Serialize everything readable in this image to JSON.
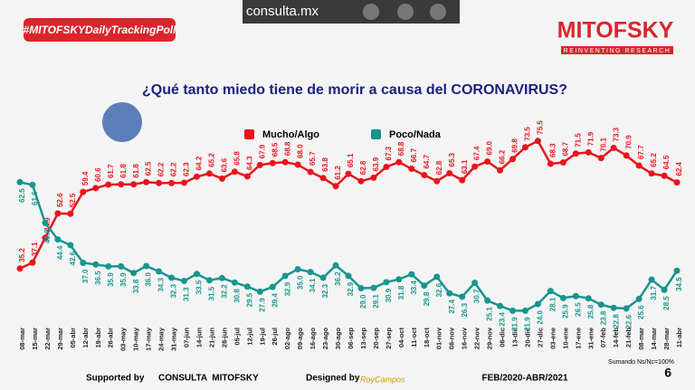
{
  "header": {
    "site": "consulta.mx",
    "hashtag": "#MITOFSKYDailyTrackingPoll",
    "brand": "MITOFSKY",
    "tagline": "REINVENTING RESEARCH"
  },
  "chart_data": {
    "type": "line",
    "title": "¿Qué tanto miedo tiene de morir a causa del CORONAVIRUS?",
    "categories": [
      "08-mar",
      "15-mar",
      "22-mar",
      "29-mar",
      "05-abr",
      "12-abr",
      "19-abr",
      "26-abr",
      "03-may",
      "10-may",
      "17-may",
      "24-may",
      "31-may",
      "07-jun",
      "14-jun",
      "21-jun",
      "28-jun",
      "05-jul",
      "12-jul",
      "19-jul",
      "26-jul",
      "02-ago",
      "09-ago",
      "16-ago",
      "23-ago",
      "30-ago",
      "06-sep",
      "13-sep",
      "20-sep",
      "27-sep",
      "04-oct",
      "11-oct",
      "18-oct",
      "01-nov",
      "08-nov",
      "16-nov",
      "22-nov",
      "29-nov",
      "06-dic",
      "13-dic",
      "20-dic",
      "27-dic",
      "03-ene",
      "10-ene",
      "17-ene",
      "31-ene",
      "07-feb",
      "14-feb",
      "21-feb",
      "08-mar",
      "14-mar",
      "28-mar",
      "11-abr"
    ],
    "series": [
      {
        "name": "Mucho/Algo",
        "color": "#e8141c",
        "values": [
          35.2,
          37.1,
          44.9,
          52.6,
          52.5,
          59.4,
          60.6,
          61.7,
          61.8,
          61.8,
          62.5,
          62.2,
          62.2,
          62.3,
          64.2,
          65.2,
          63.6,
          65.8,
          64.3,
          67.9,
          68.5,
          68.8,
          68.0,
          65.7,
          63.8,
          61.2,
          65.1,
          62.8,
          63.9,
          67.3,
          68.8,
          66.7,
          64.7,
          62.8,
          65.3,
          63.1,
          67.4,
          69.0,
          66.2,
          69.8,
          73.5,
          75.5,
          68.3,
          68.7,
          71.5,
          71.9,
          70.1,
          73.3,
          70.9,
          67.7,
          65.2,
          64.5,
          62.4
        ],
        "value_labels": [
          "35.2",
          "37.1",
          "44.9",
          "52.6",
          "52.5",
          "59.4",
          "60.6",
          "61.7",
          "61.8",
          "61.8",
          "62.5",
          "62.2",
          "62.2",
          "62.3",
          "64.2",
          "65.2",
          "63.6",
          "65.8",
          "64.3",
          "67.9",
          "68.5",
          "68.8",
          "68.0",
          "65.7",
          "63.8",
          "61.2",
          "65.1",
          "62.8",
          "63.9",
          "67.3",
          "68.8",
          "66.7",
          "64.7",
          "62.8",
          "65.3",
          "63.1",
          "67.4",
          "69.0",
          "66.2",
          "69.8",
          "73.5",
          "75.5",
          "68.3",
          "68.7",
          "71.5",
          "71.9",
          "70.1",
          "73.3",
          "70.9",
          "67.7",
          "65.2",
          "64.5",
          "62.4"
        ]
      },
      {
        "name": "Poco/Nada",
        "color": "#17958f",
        "values": [
          62.5,
          61.6,
          49.6,
          44.4,
          42.6,
          37.0,
          36.5,
          35.9,
          35.9,
          33.8,
          36.0,
          34.3,
          32.3,
          31.3,
          33.5,
          31.5,
          32.2,
          30.8,
          29.5,
          27.9,
          29.4,
          32.9,
          35.0,
          34.1,
          32.3,
          36.2,
          32.9,
          29.0,
          29.1,
          30.9,
          31.8,
          33.4,
          29.8,
          32.6,
          27.4,
          26.3,
          30.7,
          25.1,
          23.4,
          21.9,
          21.9,
          24.0,
          28.1,
          25.9,
          26.5,
          25.8,
          23.8,
          22.8,
          22.6,
          25.6,
          31.7,
          28.5,
          34.5
        ],
        "value_labels": [
          "62.5",
          "61.6",
          "49.6",
          "44.4",
          "42.6",
          "37.0",
          "36.5",
          "35.9",
          "35.9",
          "33.8",
          "36.0",
          "34.3",
          "32.3",
          "31.3",
          "33.5",
          "31.5",
          "32.2",
          "30.8",
          "29.5",
          "27.9",
          "29.4",
          "32.9",
          "35.0",
          "34.1",
          "32.3",
          "36.2",
          "32.9",
          "29.0",
          "29.1",
          "30.9",
          "31.8",
          "33.4",
          "29.8",
          "32.6",
          "27.4",
          "26.3",
          "30.7",
          "25.1",
          "23.4",
          "21.9",
          "21.9",
          "24.0",
          "28.1",
          "25.9",
          "26.5",
          "25.8",
          "23.8",
          "22.8",
          "22.6",
          "25.6",
          "31.7",
          "28.5",
          "34.5"
        ]
      }
    ],
    "ylim": [
      20,
      80
    ]
  },
  "footer": {
    "supported": "Supported by",
    "sponsor": "CONSULTA  MITOFSKY",
    "designed": "Designed by",
    "designer": "RoyCampos",
    "period": "FEB/2020-ABR/2021",
    "note": "Sumando Ns/Nc=100%",
    "page": "6"
  }
}
